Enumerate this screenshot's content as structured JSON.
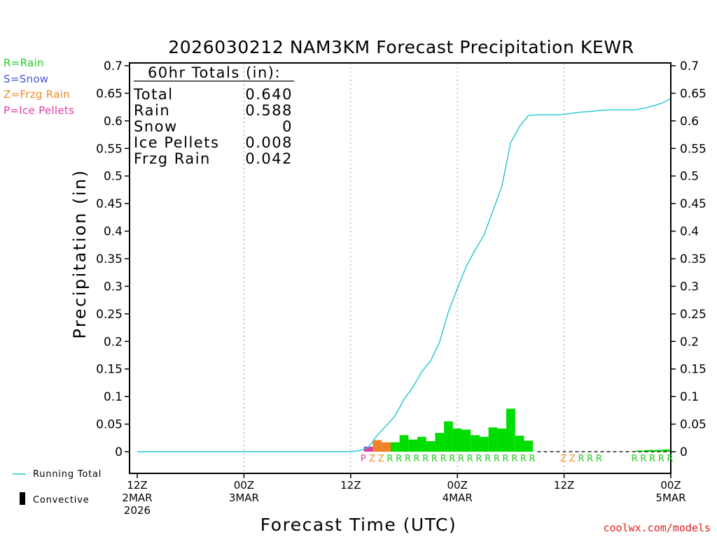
{
  "chart_data": {
    "type": "bar",
    "title": "2026030212 NAM3KM Forecast Precipitation KEWR",
    "xlabel": "Forecast Time (UTC)",
    "ylabel": "Precipitation (in)",
    "ylim": [
      0,
      0.7
    ],
    "xlim_hours": [
      0,
      60
    ],
    "yticks": [
      "0",
      "0.05",
      "0.1",
      "0.15",
      "0.2",
      "0.25",
      "0.3",
      "0.35",
      "0.4",
      "0.45",
      "0.5",
      "0.55",
      "0.6",
      "0.65",
      "0.7"
    ],
    "xticks": [
      {
        "hour": 0,
        "lines": [
          "12Z",
          "2MAR",
          "2026"
        ]
      },
      {
        "hour": 12,
        "lines": [
          "00Z",
          "3MAR"
        ]
      },
      {
        "hour": 24,
        "lines": [
          "12Z"
        ]
      },
      {
        "hour": 36,
        "lines": [
          "00Z",
          "4MAR"
        ]
      },
      {
        "hour": 48,
        "lines": [
          "12Z"
        ]
      },
      {
        "hour": 60,
        "lines": [
          "00Z",
          "5MAR"
        ]
      }
    ],
    "totals": {
      "header": "60hr Totals (in):",
      "rows": [
        {
          "label": "Total",
          "value": "0.640"
        },
        {
          "label": "Rain",
          "value": "0.588"
        },
        {
          "label": "Snow",
          "value": "0"
        },
        {
          "label": "Ice Pellets",
          "value": "0.008"
        },
        {
          "label": "Frzg Rain",
          "value": "0.042"
        }
      ]
    },
    "type_legend": [
      {
        "text": "R=Rain",
        "color": "#22cc22"
      },
      {
        "text": "S=Snow",
        "color": "#4a55d8"
      },
      {
        "text": "Z=Frzg Rain",
        "color": "#f08c28"
      },
      {
        "text": "P=Ice Pellets",
        "color": "#e23ca4"
      }
    ],
    "series_legend": {
      "running_total": "Running Total",
      "convective": "Convective"
    },
    "colors": {
      "R": "#00dd00",
      "Z": "#f08228",
      "P": "#e03ca8",
      "S": "#4455dd",
      "running_total": "#22c8cc",
      "convective": "#000000"
    },
    "bars": [
      {
        "start": 25.5,
        "value": 0.004,
        "type": "P",
        "segments": [
          {
            "type": "S",
            "value": 0.004
          },
          {
            "type": "P",
            "value": 0.004
          }
        ]
      },
      {
        "start": 25.5,
        "value": 0.008,
        "type": "P"
      },
      {
        "start": 26.5,
        "value": 0.021,
        "type": "Z"
      },
      {
        "start": 27.5,
        "value": 0.017,
        "type": "Z"
      },
      {
        "start": 28.5,
        "value": 0.017,
        "type": "R"
      },
      {
        "start": 29.5,
        "value": 0.03,
        "type": "R"
      },
      {
        "start": 30.5,
        "value": 0.022,
        "type": "R"
      },
      {
        "start": 31.5,
        "value": 0.027,
        "type": "R"
      },
      {
        "start": 32.5,
        "value": 0.019,
        "type": "R"
      },
      {
        "start": 33.5,
        "value": 0.034,
        "type": "R"
      },
      {
        "start": 34.5,
        "value": 0.055,
        "type": "R"
      },
      {
        "start": 35.5,
        "value": 0.042,
        "type": "R"
      },
      {
        "start": 36.5,
        "value": 0.04,
        "type": "R"
      },
      {
        "start": 37.5,
        "value": 0.03,
        "type": "R"
      },
      {
        "start": 38.5,
        "value": 0.027,
        "type": "R"
      },
      {
        "start": 39.5,
        "value": 0.044,
        "type": "R"
      },
      {
        "start": 40.5,
        "value": 0.042,
        "type": "R"
      },
      {
        "start": 41.5,
        "value": 0.078,
        "type": "R"
      },
      {
        "start": 42.5,
        "value": 0.029,
        "type": "R"
      },
      {
        "start": 43.5,
        "value": 0.02,
        "type": "R"
      },
      {
        "start": 56.0,
        "value": 0.002,
        "type": "R"
      },
      {
        "start": 57.0,
        "value": 0.003,
        "type": "R"
      },
      {
        "start": 58.0,
        "value": 0.003,
        "type": "R"
      },
      {
        "start": 59.0,
        "value": 0.004,
        "type": "R"
      }
    ],
    "type_letters": [
      {
        "hour": 25.5,
        "letter": "P"
      },
      {
        "hour": 26.5,
        "letter": "Z"
      },
      {
        "hour": 27.5,
        "letter": "Z"
      },
      {
        "hour": 28.5,
        "letter": "R"
      },
      {
        "hour": 29.5,
        "letter": "R"
      },
      {
        "hour": 30.5,
        "letter": "R"
      },
      {
        "hour": 31.5,
        "letter": "R"
      },
      {
        "hour": 32.5,
        "letter": "R"
      },
      {
        "hour": 33.5,
        "letter": "R"
      },
      {
        "hour": 34.5,
        "letter": "R"
      },
      {
        "hour": 35.5,
        "letter": "R"
      },
      {
        "hour": 36.5,
        "letter": "R"
      },
      {
        "hour": 37.5,
        "letter": "R"
      },
      {
        "hour": 38.5,
        "letter": "R"
      },
      {
        "hour": 39.5,
        "letter": "R"
      },
      {
        "hour": 40.5,
        "letter": "R"
      },
      {
        "hour": 41.5,
        "letter": "R"
      },
      {
        "hour": 42.5,
        "letter": "R"
      },
      {
        "hour": 43.5,
        "letter": "R"
      },
      {
        "hour": 44.5,
        "letter": "R"
      },
      {
        "hour": 48.0,
        "letter": "Z"
      },
      {
        "hour": 49.0,
        "letter": "Z"
      },
      {
        "hour": 50.0,
        "letter": "R"
      },
      {
        "hour": 51.0,
        "letter": "R"
      },
      {
        "hour": 52.0,
        "letter": "R"
      },
      {
        "hour": 56.0,
        "letter": "R"
      },
      {
        "hour": 57.0,
        "letter": "R"
      },
      {
        "hour": 58.0,
        "letter": "R"
      },
      {
        "hour": 59.0,
        "letter": "R"
      },
      {
        "hour": 60.0,
        "letter": "R"
      }
    ],
    "running_total": {
      "x": [
        0,
        24,
        25.0,
        26.0,
        27.0,
        28.0,
        29.0,
        30.0,
        31.0,
        32.0,
        33.0,
        34.0,
        35.0,
        36.0,
        37.0,
        38.0,
        39.0,
        40.0,
        41.0,
        42.0,
        43.0,
        44.0,
        45.0,
        47.0,
        48.0,
        49.0,
        50.0,
        51.0,
        52.0,
        53.0,
        54.0,
        55.0,
        56.0,
        57.0,
        58.0,
        59.0,
        60.0
      ],
      "y": [
        0,
        0,
        0.002,
        0.008,
        0.03,
        0.047,
        0.065,
        0.095,
        0.117,
        0.145,
        0.165,
        0.199,
        0.254,
        0.296,
        0.336,
        0.366,
        0.393,
        0.437,
        0.481,
        0.561,
        0.59,
        0.61,
        0.611,
        0.611,
        0.612,
        0.614,
        0.616,
        0.617,
        0.619,
        0.62,
        0.62,
        0.62,
        0.62,
        0.623,
        0.627,
        0.632,
        0.64
      ]
    },
    "credit": "coolwx.com/models"
  }
}
